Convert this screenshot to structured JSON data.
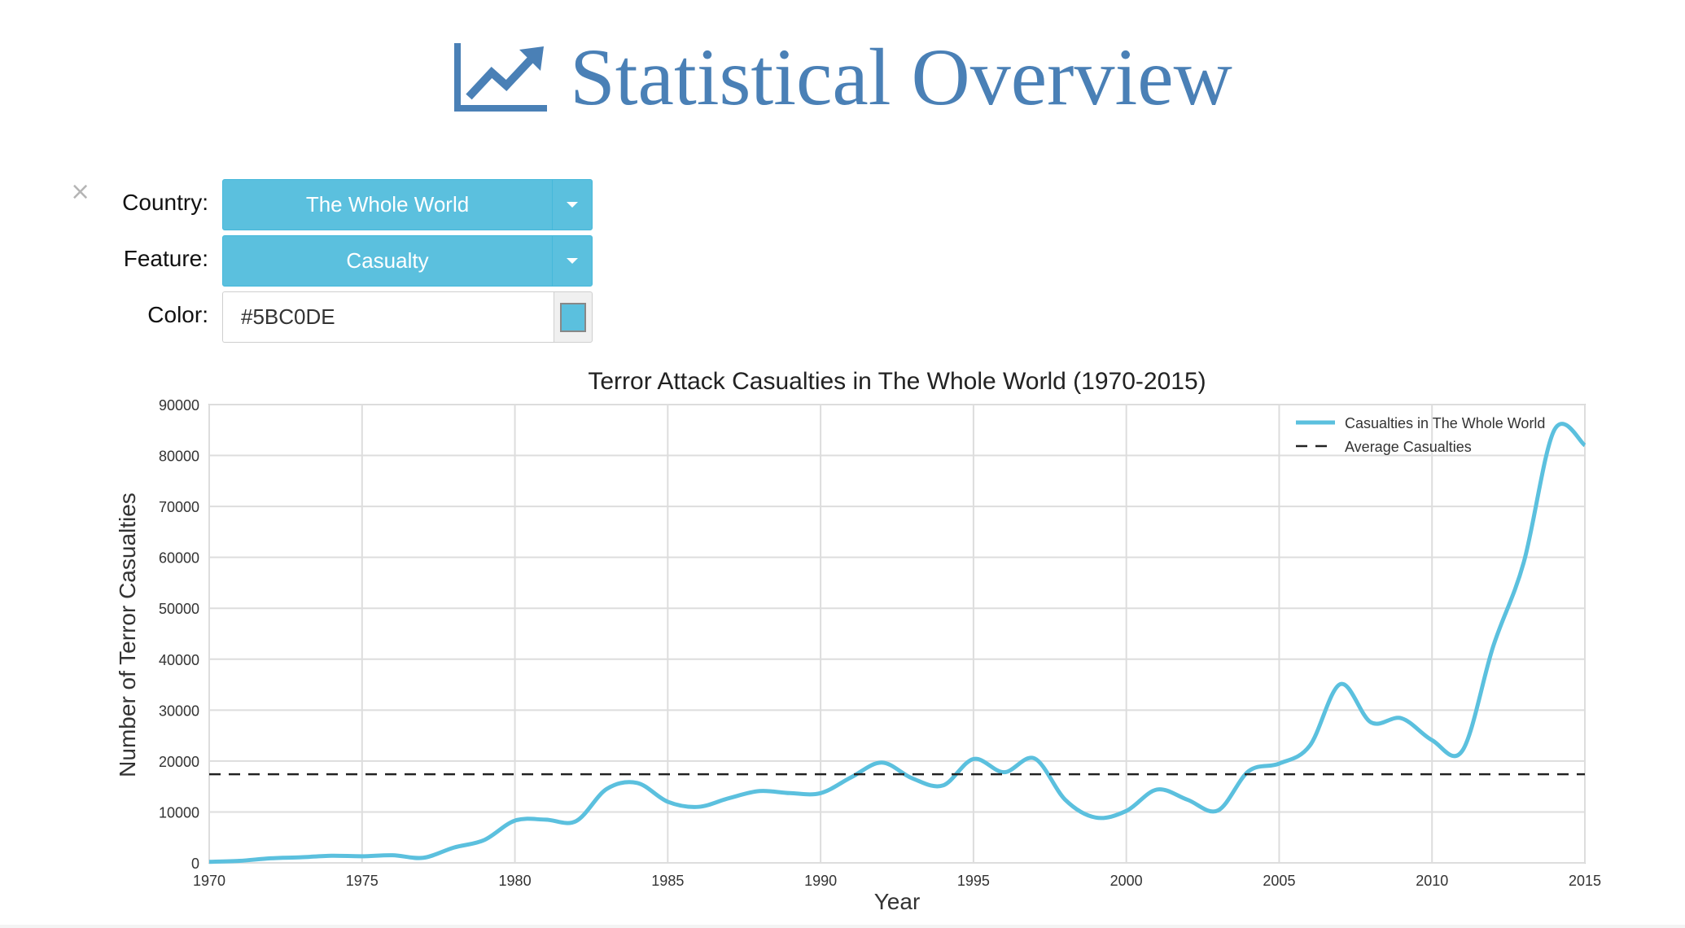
{
  "header": {
    "title": "Statistical Overview",
    "icon": "line-chart-icon",
    "color": "#4a80b6"
  },
  "close": {
    "glyph": "×",
    "icon": "close-icon"
  },
  "controls": {
    "country_label": "Country:",
    "country_value": "The Whole World",
    "feature_label": "Feature:",
    "feature_value": "Casualty",
    "color_label": "Color:",
    "color_value": "#5BC0DE",
    "accent": "#5bc0de"
  },
  "chart_data": {
    "type": "line",
    "title": "Terror Attack Casualties in The Whole World (1970-2015)",
    "xlabel": "Year",
    "ylabel": "Number of Terror Casualties",
    "xlim": [
      1970,
      2015
    ],
    "ylim": [
      0,
      90000
    ],
    "x_ticks": [
      1970,
      1975,
      1980,
      1985,
      1990,
      1995,
      2000,
      2005,
      2010,
      2015
    ],
    "y_ticks": [
      0,
      10000,
      20000,
      30000,
      40000,
      50000,
      60000,
      70000,
      80000,
      90000
    ],
    "grid": true,
    "legend_position": "top-right",
    "series": [
      {
        "name": "Casualties in The Whole World",
        "color": "#5bc0de",
        "style": "solid",
        "x": [
          1970,
          1971,
          1972,
          1973,
          1974,
          1975,
          1976,
          1977,
          1978,
          1979,
          1980,
          1981,
          1982,
          1983,
          1984,
          1985,
          1986,
          1987,
          1988,
          1989,
          1990,
          1991,
          1992,
          1993,
          1994,
          1995,
          1996,
          1997,
          1998,
          1999,
          2000,
          2001,
          2002,
          2003,
          2004,
          2005,
          2006,
          2007,
          2008,
          2009,
          2010,
          2011,
          2012,
          2013,
          2014,
          2015
        ],
        "values": [
          200,
          400,
          900,
          1100,
          1400,
          1300,
          1500,
          1000,
          3000,
          4500,
          8300,
          8500,
          8200,
          14500,
          15700,
          12000,
          11000,
          12700,
          14100,
          13700,
          13700,
          16800,
          19700,
          16600,
          15200,
          20400,
          17800,
          20500,
          12400,
          8900,
          10200,
          14400,
          12400,
          10300,
          18000,
          19500,
          23000,
          35100,
          27600,
          28400,
          24100,
          22100,
          42500,
          59000,
          85000,
          82000
        ]
      },
      {
        "name": "Average Casualties",
        "color": "#222222",
        "style": "dashed",
        "x": [
          1970,
          2015
        ],
        "values": [
          17400,
          17400
        ]
      }
    ]
  }
}
